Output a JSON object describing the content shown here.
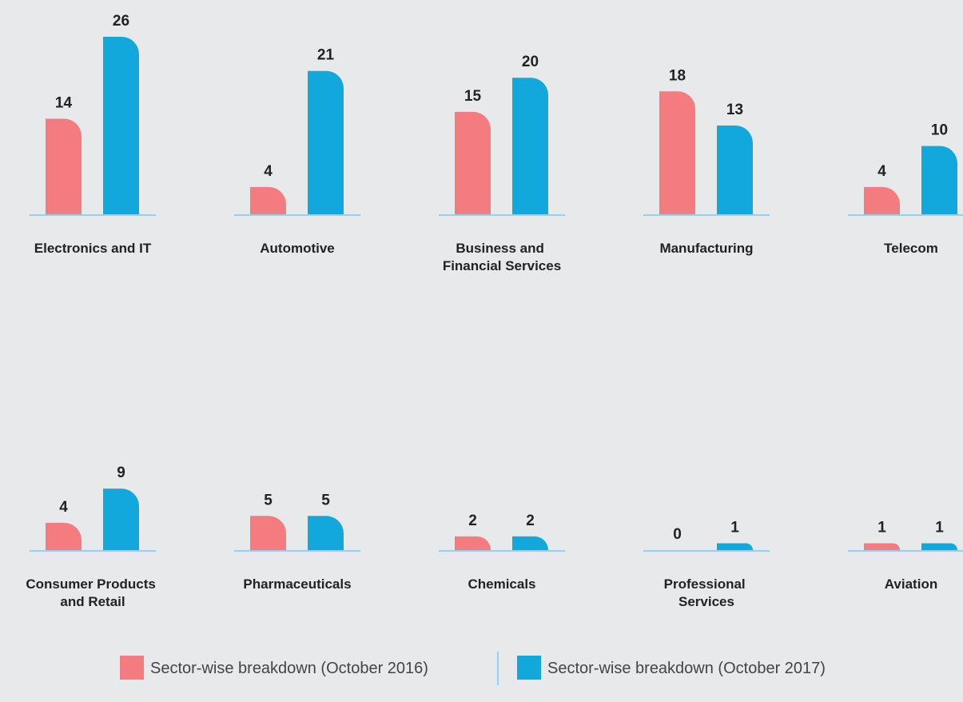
{
  "chart_data": {
    "type": "bar",
    "categories": [
      "Electronics and IT",
      "Automotive",
      "Business and Financial Services",
      "Manufacturing",
      "Telecom",
      "Consumer Products and Retail",
      "Pharmaceuticals",
      "Chemicals",
      "Professional Services",
      "Aviation"
    ],
    "series": [
      {
        "name": "Sector-wise breakdown (October 2016)",
        "color": "#f47c80",
        "values": [
          14,
          4,
          15,
          18,
          4,
          4,
          5,
          2,
          0,
          1
        ]
      },
      {
        "name": "Sector-wise breakdown (October 2017)",
        "color": "#13a8dc",
        "values": [
          26,
          21,
          20,
          13,
          10,
          9,
          5,
          2,
          1,
          1
        ]
      }
    ]
  }
}
